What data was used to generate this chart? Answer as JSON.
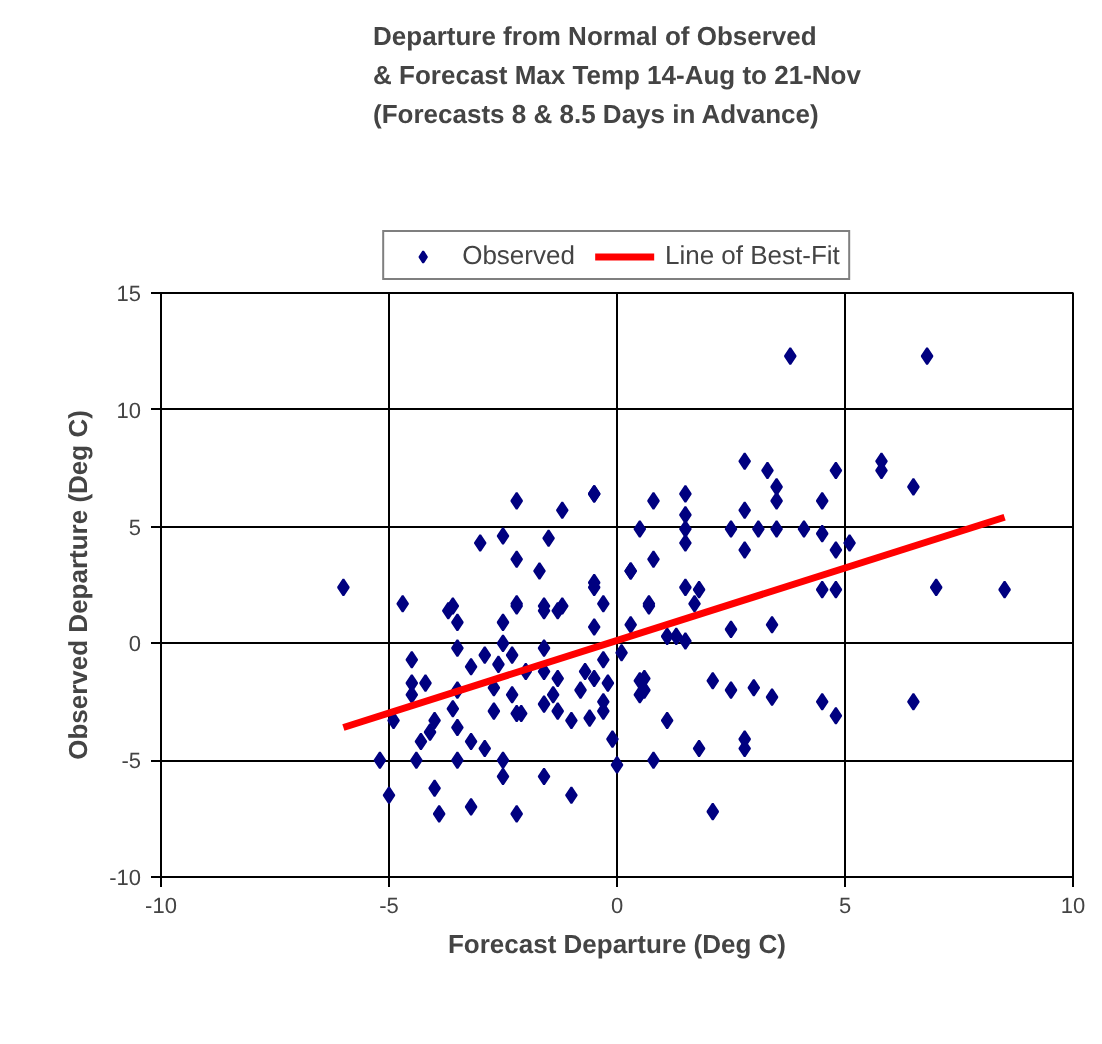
{
  "chart_data": {
    "type": "scatter",
    "title": "Departure from Normal of Observed\n& Forecast Max Temp 14-Aug to 21-Nov\n(Forecasts 8 & 8.5 Days in Advance)",
    "xlabel": "Forecast Departure (Deg C)",
    "ylabel": "Observed Departure (Deg C)",
    "xlim": [
      -10,
      10
    ],
    "ylim": [
      -10,
      15
    ],
    "xticks": [
      -10,
      -5,
      0,
      5,
      10
    ],
    "yticks": [
      -10,
      -5,
      0,
      5,
      10,
      15
    ],
    "grid": true,
    "legend": "top",
    "series": [
      {
        "name": "Observed",
        "marker": "diamond",
        "color": "#000080",
        "x": [
          3.8,
          6.8,
          -6.0,
          8.5,
          7.0,
          2.8,
          3.3,
          5.8,
          5.8,
          4.8,
          6.5,
          3.5,
          3.5,
          0.8,
          1.5,
          1.5,
          4.5,
          2.8,
          0.5,
          1.5,
          1.5,
          2.5,
          3.1,
          3.5,
          4.1,
          4.5,
          5.1,
          4.8,
          2.8,
          0.3,
          0.8,
          1.5,
          1.8,
          4.5,
          4.8,
          -0.5,
          -0.5,
          -0.3,
          0.7,
          1.7,
          3.4,
          2.5,
          1.1,
          1.3,
          1.5,
          0.3,
          0.1,
          -0.3,
          0.5,
          0.5,
          2.1,
          2.5,
          3.0,
          3.4,
          4.5,
          4.8,
          6.5,
          1.1,
          -0.1,
          1.8,
          2.8,
          2.8,
          0.8,
          0.0,
          2.1,
          -0.3,
          -0.3,
          -4.7,
          -3.6,
          -3.5,
          -2.5,
          -2.2,
          -1.6,
          -1.2,
          -0.5,
          -3.5,
          -2.5,
          -2.9,
          -2.3,
          -1.6,
          -4.5,
          -3.2,
          -2.6,
          -2.0,
          -1.6,
          -1.3,
          -0.7,
          -0.5,
          -4.5,
          -4.2,
          -4.5,
          -3.5,
          -2.7,
          -2.3,
          -1.4,
          -0.8,
          -0.2,
          -3.6,
          -2.7,
          -2.1,
          -1.6,
          -1.3,
          -1.0,
          -0.6,
          -4.9,
          -4.0,
          -4.1,
          -3.5,
          -2.2,
          -4.3,
          -3.2,
          -2.9,
          -5.2,
          -4.4,
          -3.5,
          -2.5,
          -2.5,
          -1.6,
          -5.0,
          -4.0,
          -1.0,
          -3.9,
          -3.2,
          -2.2,
          0.6,
          0.6,
          -2.2,
          -1.2,
          -0.5,
          -3.0,
          -2.5,
          -1.5,
          -2.2,
          -1.7,
          -0.5,
          0.3,
          -3.7,
          -2.2,
          -1.6,
          -1.3,
          0.7
        ],
        "values": [
          12.3,
          12.3,
          2.4,
          2.3,
          2.4,
          7.8,
          7.4,
          7.8,
          7.4,
          7.4,
          6.7,
          6.7,
          6.1,
          6.1,
          6.4,
          5.5,
          6.1,
          5.7,
          4.9,
          4.9,
          4.3,
          4.9,
          4.9,
          4.9,
          4.9,
          4.7,
          4.3,
          4.0,
          4.0,
          3.1,
          3.6,
          2.4,
          2.3,
          2.3,
          2.3,
          6.4,
          2.4,
          1.7,
          1.7,
          1.7,
          0.8,
          0.6,
          0.3,
          0.3,
          0.1,
          0.8,
          -0.4,
          -0.7,
          -1.6,
          -2.2,
          -1.6,
          -2.0,
          -1.9,
          -2.3,
          -2.5,
          -3.1,
          -2.5,
          -3.3,
          -4.1,
          -4.5,
          -4.1,
          -4.5,
          -5.0,
          -5.2,
          -7.2,
          -2.5,
          -2.9,
          1.7,
          1.6,
          0.9,
          0.9,
          1.7,
          1.6,
          1.6,
          0.7,
          -0.2,
          0.0,
          -0.5,
          -0.5,
          -0.2,
          -0.7,
          -1.0,
          -0.9,
          -1.2,
          -1.2,
          -1.5,
          -1.2,
          -1.5,
          -1.7,
          -1.7,
          -2.2,
          -2.0,
          -1.9,
          -2.2,
          -2.2,
          -2.0,
          -1.7,
          -2.8,
          -2.9,
          -3.0,
          -2.6,
          -2.9,
          -3.3,
          -3.2,
          -3.3,
          -3.3,
          -3.8,
          -3.6,
          -3.0,
          -4.2,
          -4.2,
          -4.5,
          -5.0,
          -5.0,
          -5.0,
          -5.0,
          -5.7,
          -5.7,
          -6.5,
          -6.2,
          -6.5,
          -7.3,
          -7.0,
          -7.3,
          -1.5,
          -2.0,
          6.1,
          5.7,
          6.4,
          4.3,
          4.6,
          4.5,
          3.6,
          3.1,
          2.6,
          3.1,
          1.4,
          1.6,
          1.4,
          1.4,
          1.6
        ]
      },
      {
        "name": "Line of Best-Fit",
        "type": "line",
        "color": "#ff0000",
        "x": [
          -6.0,
          8.5
        ],
        "values": [
          -3.6,
          5.4
        ]
      }
    ]
  }
}
